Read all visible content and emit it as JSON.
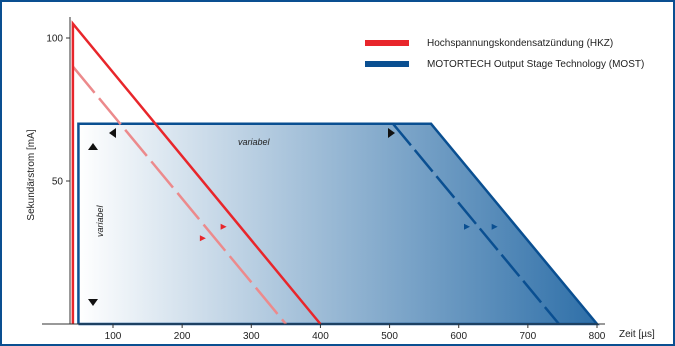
{
  "chart_data": {
    "type": "line",
    "xlabel": "Zeit [µs]",
    "ylabel": "Sekundärstrom [mA]",
    "xlim": [
      0,
      800
    ],
    "ylim": [
      0,
      108
    ],
    "x_ticks": [
      100,
      200,
      300,
      400,
      500,
      600,
      700,
      800
    ],
    "y_ticks": [
      50,
      100
    ],
    "grid": false,
    "legend_position": "top-right",
    "colors": {
      "hkz": "#e8262b",
      "hkz_light": "#ec8a8c",
      "most": "#0a4f91",
      "frame": "#0a4f91",
      "gradient_start": "#ffffff",
      "gradient_end": "#2e6fa8"
    },
    "series": [
      {
        "name": "Hochspannungskondensatzündung (HKZ)",
        "key": "hkz",
        "x": [
          42,
          42,
          400
        ],
        "y": [
          0,
          105,
          0
        ]
      },
      {
        "key": "hkz_dashed",
        "x": [
          42,
          350
        ],
        "y": [
          90,
          0
        ]
      },
      {
        "name": "MOTORTECH Output Stage Technology (MOST)",
        "key": "most",
        "x": [
          50,
          50,
          560,
          800,
          50
        ],
        "y": [
          0,
          70,
          70,
          0,
          0
        ]
      },
      {
        "key": "most_dashed",
        "x": [
          505,
          745
        ],
        "y": [
          70,
          0
        ]
      }
    ],
    "annotations": {
      "variabel_top": "variabel",
      "variabel_left": "variabel"
    }
  }
}
